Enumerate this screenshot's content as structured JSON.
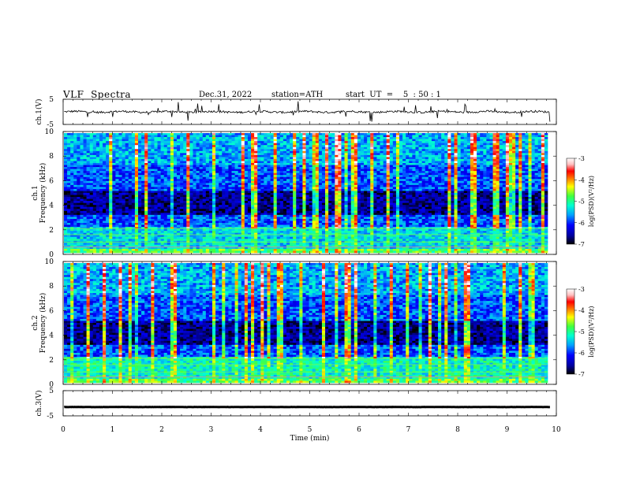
{
  "header": {
    "title": "VLF  Spectra",
    "date": "Dec.31, 2022",
    "station": "station=ATH",
    "start": "start  UT  =    5  : 50 : 1"
  },
  "colors": {
    "colormap": [
      "#000000",
      "#0000a0",
      "#0000ff",
      "#00a0ff",
      "#00ffd0",
      "#40ff40",
      "#ffff00",
      "#ff8000",
      "#ff0000",
      "#ffc0c0",
      "#ffffff"
    ]
  },
  "chart_data": [
    {
      "type": "line",
      "name": "ch1-waveform",
      "ylabel": "ch.1(V)",
      "ylim": [
        -5,
        5
      ],
      "yticks": [
        "5",
        "-5"
      ],
      "xlim": [
        0,
        10
      ],
      "baseline": 0,
      "noise_amplitude": 1
    },
    {
      "type": "heatmap",
      "name": "ch1-spectrogram",
      "ylabel": [
        "ch.1",
        "Frequency  (kHz)"
      ],
      "ylim": [
        0,
        10
      ],
      "yticks": [
        "0",
        "2",
        "4",
        "6",
        "8",
        "10"
      ],
      "xlim": [
        0,
        10
      ],
      "colorbar": {
        "label": "log(PSD)(V²/Hz)",
        "range": [
          -7,
          -3
        ],
        "ticks": [
          "-3",
          "-4",
          "-5",
          "-6",
          "-7"
        ]
      }
    },
    {
      "type": "heatmap",
      "name": "ch2-spectrogram",
      "ylabel": [
        "ch.2",
        "Frequency  (kHz)"
      ],
      "ylim": [
        0,
        10
      ],
      "yticks": [
        "0",
        "2",
        "4",
        "6",
        "8",
        "10"
      ],
      "xlim": [
        0,
        10
      ],
      "colorbar": {
        "label": "log(PSD)(V²/Hz)",
        "range": [
          -7,
          -3
        ],
        "ticks": [
          "-3",
          "-4",
          "-5",
          "-6",
          "-7"
        ]
      }
    },
    {
      "type": "line",
      "name": "ch3-waveform",
      "ylabel": "ch.3(V)",
      "ylim": [
        -5,
        5
      ],
      "yticks": [
        "5",
        "-5"
      ],
      "xlim": [
        0,
        10
      ],
      "baseline": -1.5,
      "noise_amplitude": 0.1
    }
  ],
  "xaxis": {
    "label": "Time  (min)",
    "ticks": [
      "0",
      "1",
      "2",
      "3",
      "4",
      "5",
      "6",
      "7",
      "8",
      "9",
      "10"
    ]
  }
}
